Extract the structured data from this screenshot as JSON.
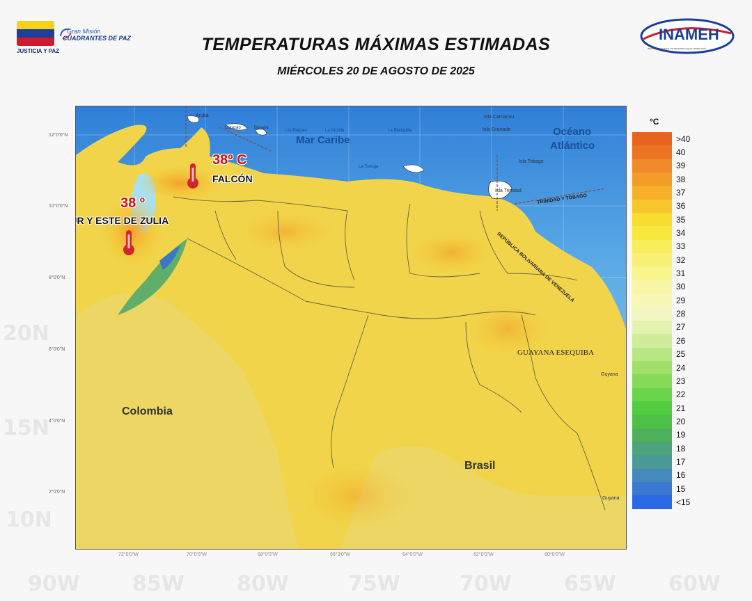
{
  "header": {
    "title": "TEMPERATURAS MÁXIMAS ESTIMADAS",
    "subtitle": "MIÉRCOLES 20 DE AGOSTO DE 2025"
  },
  "logos": {
    "left_text": "JUSTICIA Y PAZ",
    "mission_small": "Gran Misión",
    "mission_big": "CUADRANTES DE PAZ",
    "inameh": "INAMEH",
    "inameh_sub": "INSTITUTO NACIONAL DE METEOROLOGÍA E HIDROLOGÍA"
  },
  "flag_colors": [
    "#f7d117",
    "#1b3f9a",
    "#cf1b2b"
  ],
  "map": {
    "sea_caribbean": "Mar Caribe",
    "ocean_atlantic_1": "Océano",
    "ocean_atlantic_2": "Atlántico",
    "country_colombia": "Colombia",
    "country_brasil": "Brasil",
    "guayana_esequiba": "GUAYANA ESEQUIBA",
    "trinidad_tobago": "TRINIDAD Y TOBAGO",
    "rep_venezuela": "REPÚBLICA BOLIVARIANA DE VENEZUELA",
    "guyana_1": "Guyana",
    "guyana_2": "Guyana",
    "islands": {
      "aruba": "Aruba",
      "curazao": "Curazao",
      "bonaire": "Bonaire",
      "los_roques": "Los Roques",
      "la_orchila": "La Orchila",
      "la_blanquilla": "La Blanquilla",
      "la_tortuga": "La Tortuga",
      "carriacou": "Isla Carriacou",
      "granada": "Isla Granada",
      "tobago": "Isla Tobago",
      "trinidad": "Isla Trinidad"
    },
    "annotations": {
      "falcon_temp": "38º C",
      "falcon_name": "FALCÓN",
      "zulia_temp": "38 º",
      "zulia_name": "SUR Y ESTE DE ZULIA"
    },
    "lat_labels": [
      "12°0'0\"N",
      "10°0'0\"N",
      "8°0'0\"N",
      "6°0'0\"N",
      "4°0'0\"N",
      "2°0'0\"N"
    ],
    "lon_labels": [
      "72°0'0\"W",
      "70°0'0\"W",
      "68°0'0\"W",
      "66°0'0\"W",
      "64°0'0\"W",
      "62°0'0\"W",
      "60°0'0\"W"
    ]
  },
  "legend": {
    "unit": "°C",
    "items": [
      {
        "label": ">40",
        "color": "#e8641e"
      },
      {
        "label": "40",
        "color": "#ec7424"
      },
      {
        "label": "39",
        "color": "#f08a2a"
      },
      {
        "label": "38",
        "color": "#f39c28"
      },
      {
        "label": "37",
        "color": "#f6b02a"
      },
      {
        "label": "36",
        "color": "#f7c62c"
      },
      {
        "label": "35",
        "color": "#f8dc2e"
      },
      {
        "label": "34",
        "color": "#f8e83e"
      },
      {
        "label": "33",
        "color": "#f8ee5c"
      },
      {
        "label": "32",
        "color": "#f8f176"
      },
      {
        "label": "31",
        "color": "#f8f48e"
      },
      {
        "label": "30",
        "color": "#f8f6a6"
      },
      {
        "label": "29",
        "color": "#f8f7b6"
      },
      {
        "label": "28",
        "color": "#f2f6c0"
      },
      {
        "label": "27",
        "color": "#e4f2b0"
      },
      {
        "label": "26",
        "color": "#cfec9a"
      },
      {
        "label": "25",
        "color": "#b8e682"
      },
      {
        "label": "24",
        "color": "#a0e06a"
      },
      {
        "label": "23",
        "color": "#86da58"
      },
      {
        "label": "22",
        "color": "#6ad44a"
      },
      {
        "label": "21",
        "color": "#52cc3e"
      },
      {
        "label": "20",
        "color": "#4ec048"
      },
      {
        "label": "19",
        "color": "#4fb05c"
      },
      {
        "label": "18",
        "color": "#4ea47a"
      },
      {
        "label": "17",
        "color": "#4a9a96"
      },
      {
        "label": "16",
        "color": "#4488bc"
      },
      {
        "label": "15",
        "color": "#3a78d2"
      },
      {
        "label": "<15",
        "color": "#2a68e6"
      }
    ]
  },
  "background_labels": [
    "20N",
    "15N",
    "10N",
    "90W",
    "85W",
    "80W",
    "75W",
    "70W",
    "65W",
    "60W"
  ]
}
